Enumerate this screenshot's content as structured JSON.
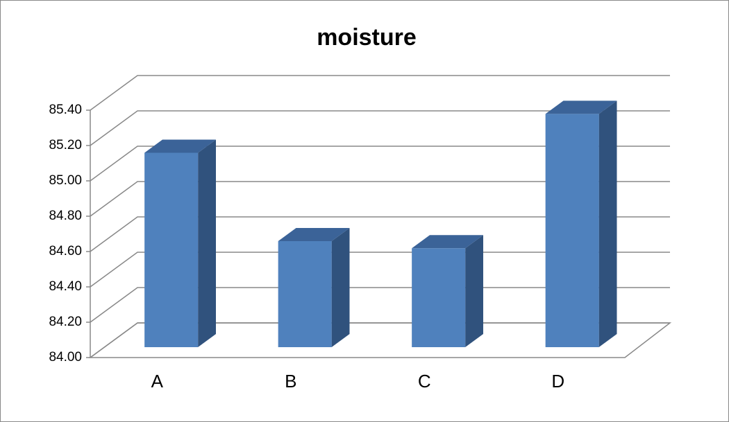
{
  "chart_data": {
    "type": "bar3d",
    "title": "moisture",
    "categories": [
      "A",
      "B",
      "C",
      "D"
    ],
    "values": [
      85.1,
      84.6,
      84.56,
      85.32
    ],
    "color": "#4f81bd",
    "ylim": [
      84.0,
      85.4
    ],
    "yticks": [
      {
        "value": 84.0,
        "label": "84.00"
      },
      {
        "value": 84.2,
        "label": "84.20"
      },
      {
        "value": 84.4,
        "label": "84.40"
      },
      {
        "value": 84.6,
        "label": "84.60"
      },
      {
        "value": 84.8,
        "label": "84.80"
      },
      {
        "value": 85.0,
        "label": "85.00"
      },
      {
        "value": 85.2,
        "label": "85.20"
      },
      {
        "value": 85.4,
        "label": "85.40"
      }
    ],
    "grid": true
  }
}
